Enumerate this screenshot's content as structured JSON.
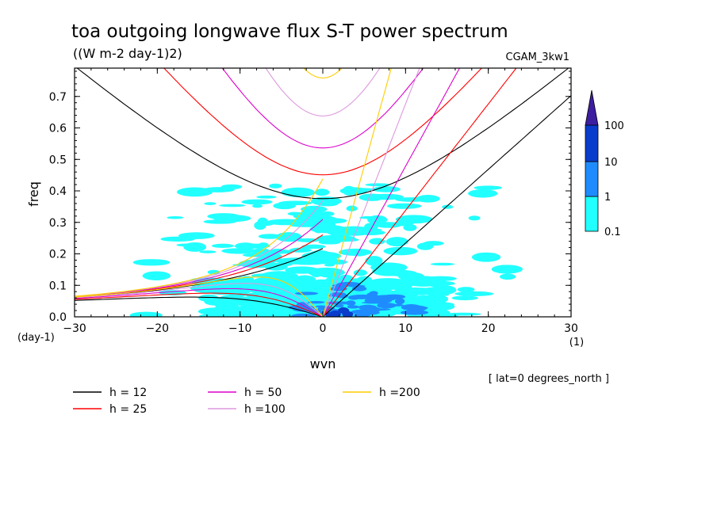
{
  "chart_data": {
    "type": "heatmap",
    "title": "toa outgoing longwave flux S-T power spectrum",
    "subtitle": "((W m-2 day-1)2)",
    "dataset_label": "CGAM_3kw1",
    "xlabel": "wvn",
    "ylabel": "freq",
    "x_unit_label": "(1)",
    "y_unit_label": "(day-1)",
    "xlim": [
      -30,
      30
    ],
    "ylim": [
      0,
      0.79
    ],
    "x_ticks": [
      "-30",
      "-20",
      "-10",
      "0",
      "10",
      "20",
      "30"
    ],
    "y_ticks": [
      "0.0",
      "0.1",
      "0.2",
      "0.3",
      "0.4",
      "0.5",
      "0.6",
      "0.7"
    ],
    "grid": false,
    "annotation": "[ lat=0 degrees_north ]",
    "colorbar": {
      "levels": [
        "0.1",
        "1",
        "10",
        "100"
      ],
      "colors": [
        "#22ffff",
        "#1e8cff",
        "#0a3ccc",
        "#3c1ea0"
      ]
    },
    "dispersion_curves": [
      {
        "label": "h = 12",
        "h": 12,
        "color": "#000000"
      },
      {
        "label": "h = 25",
        "h": 25,
        "color": "#ff0000"
      },
      {
        "label": "h = 50",
        "h": 50,
        "color": "#dd00cc"
      },
      {
        "label": "h =100",
        "h": 100,
        "color": "#dd99dd"
      },
      {
        "label": "h =200",
        "h": 200,
        "color": "#ffcc00"
      }
    ],
    "power_regions": [
      {
        "x": [
          -22,
          22
        ],
        "y": [
          0.0,
          0.42
        ],
        "level": "0.1-1",
        "note": "scattered cyan patches"
      },
      {
        "x": [
          -3,
          12
        ],
        "y": [
          0.0,
          0.12
        ],
        "level": "1-10"
      },
      {
        "x": [
          1,
          4
        ],
        "y": [
          0.0,
          0.03
        ],
        "level": "10-100"
      }
    ]
  }
}
